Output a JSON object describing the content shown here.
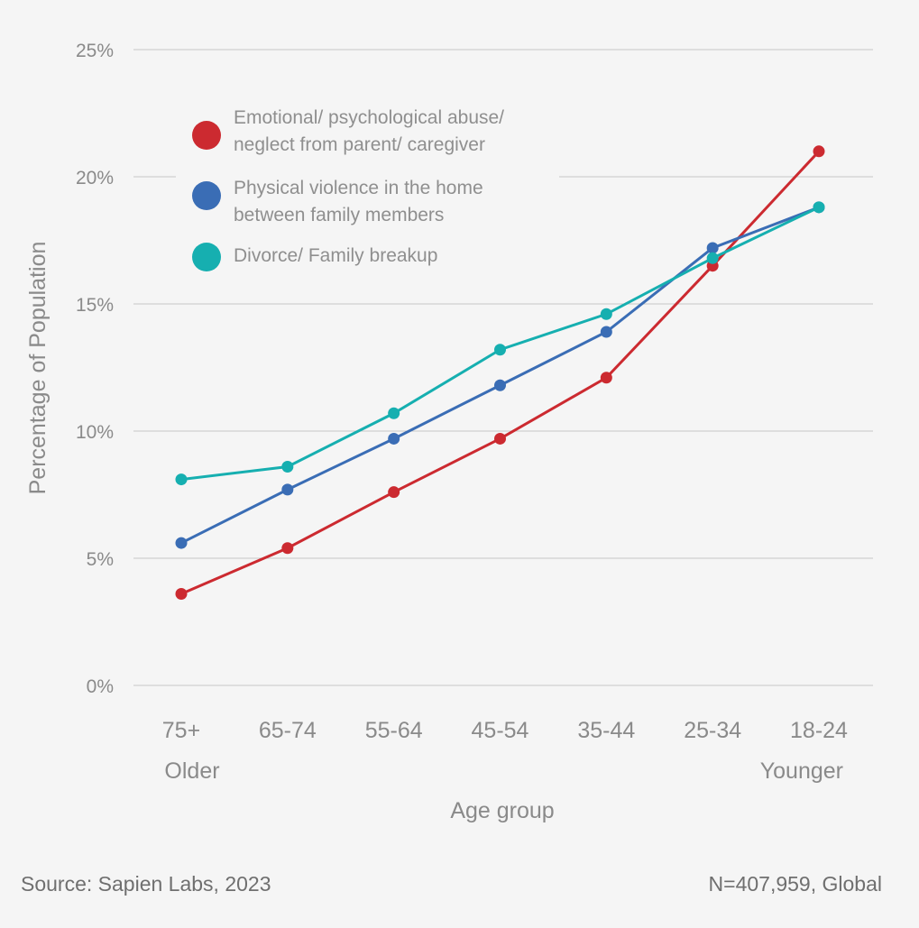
{
  "chart_data": {
    "type": "line",
    "title": "",
    "xlabel": "Age group",
    "ylabel": "Percentage of Population",
    "x_end_labels": {
      "left": "Older",
      "right": "Younger"
    },
    "categories": [
      "75+",
      "65-74",
      "55-64",
      "45-54",
      "35-44",
      "25-34",
      "18-24"
    ],
    "yticks": [
      "0%",
      "5%",
      "10%",
      "15%",
      "20%",
      "25%"
    ],
    "ylim": [
      0,
      25
    ],
    "grid": true,
    "legend_placement": "top-left",
    "series": [
      {
        "name": "Emotional/ psychological abuse/ neglect from parent/ caregiver",
        "name_lines": [
          "Emotional/ psychological abuse/",
          "neglect from parent/ caregiver"
        ],
        "color": "#cc2a30",
        "values": [
          3.6,
          5.4,
          7.6,
          9.7,
          12.1,
          16.5,
          21.0
        ]
      },
      {
        "name": "Physical violence in the home between family members",
        "name_lines": [
          "Physical violence in the home",
          "between family members"
        ],
        "color": "#3a6db5",
        "values": [
          5.6,
          7.7,
          9.7,
          11.8,
          13.9,
          17.2,
          18.8
        ]
      },
      {
        "name": "Divorce/ Family breakup",
        "name_lines": [
          "Divorce/ Family breakup"
        ],
        "color": "#16afb0",
        "values": [
          8.1,
          8.6,
          10.7,
          13.2,
          14.6,
          16.8,
          18.8
        ]
      }
    ]
  },
  "footer": {
    "source": "Source: Sapien Labs, 2023",
    "sample": "N=407,959, Global"
  }
}
